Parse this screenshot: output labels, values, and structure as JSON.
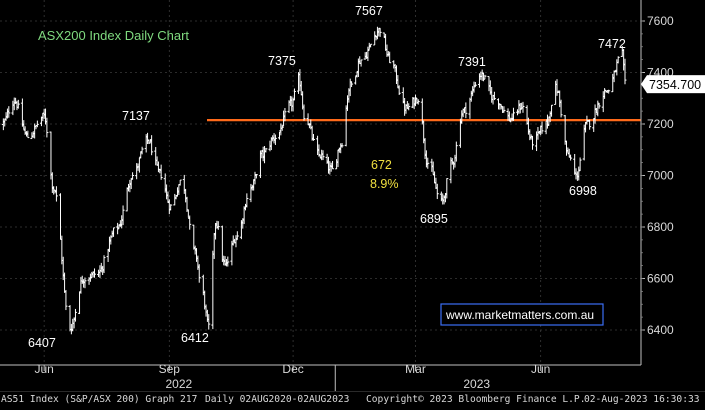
{
  "chart_data": {
    "type": "ohlc",
    "title": "ASX200 Index Daily Chart",
    "watermark": "www.marketmatters.com.au",
    "y_axis": {
      "ticks": [
        6400,
        6600,
        6800,
        7000,
        7200,
        7400,
        7600
      ],
      "ylim": [
        6340,
        7660
      ],
      "side": "right"
    },
    "x_axis": {
      "months": [
        "Jun",
        "Sep",
        "Dec",
        "Mar",
        "Jun"
      ],
      "years": [
        "2022",
        "2023"
      ]
    },
    "last_price": {
      "value": 7354.7,
      "label": "7354.700"
    },
    "support_line": {
      "value": 7215,
      "color": "#ff6a1a"
    },
    "annotations": [
      {
        "label": "6407",
        "value": 6407
      },
      {
        "label": "7137",
        "value": 7137
      },
      {
        "label": "6412",
        "value": 6412
      },
      {
        "label": "7375",
        "value": 7375
      },
      {
        "label": "7567",
        "value": 7567
      },
      {
        "label": "6895",
        "value": 6895
      },
      {
        "label": "7391",
        "value": 7391
      },
      {
        "label": "6998",
        "value": 6998
      },
      {
        "label": "7472",
        "value": 7472
      }
    ],
    "move_label": {
      "points": "672",
      "percent": "8.9%"
    },
    "anchors": [
      [
        "2022-05-01",
        7200
      ],
      [
        "2022-05-10",
        7290
      ],
      [
        "2022-05-20",
        7150
      ],
      [
        "2022-06-01",
        7230
      ],
      [
        "2022-06-08",
        6950
      ],
      [
        "2022-06-20",
        6407
      ],
      [
        "2022-06-30",
        6600
      ],
      [
        "2022-07-10",
        6620
      ],
      [
        "2022-07-25",
        6800
      ],
      [
        "2022-08-05",
        7000
      ],
      [
        "2022-08-16",
        7137
      ],
      [
        "2022-08-25",
        7010
      ],
      [
        "2022-09-02",
        6880
      ],
      [
        "2022-09-10",
        6980
      ],
      [
        "2022-09-20",
        6700
      ],
      [
        "2022-09-25",
        6550
      ],
      [
        "2022-09-30",
        6412
      ],
      [
        "2022-10-05",
        6820
      ],
      [
        "2022-10-12",
        6650
      ],
      [
        "2022-10-20",
        6760
      ],
      [
        "2022-10-31",
        6950
      ],
      [
        "2022-11-08",
        7080
      ],
      [
        "2022-11-18",
        7150
      ],
      [
        "2022-11-30",
        7280
      ],
      [
        "2022-12-05",
        7375
      ],
      [
        "2022-12-10",
        7220
      ],
      [
        "2022-12-20",
        7080
      ],
      [
        "2022-12-30",
        7020
      ],
      [
        "2023-01-05",
        7120
      ],
      [
        "2023-01-12",
        7350
      ],
      [
        "2023-01-20",
        7450
      ],
      [
        "2023-02-03",
        7567
      ],
      [
        "2023-02-10",
        7450
      ],
      [
        "2023-02-22",
        7260
      ],
      [
        "2023-03-03",
        7300
      ],
      [
        "2023-03-10",
        7050
      ],
      [
        "2023-03-20",
        6895
      ],
      [
        "2023-03-28",
        7050
      ],
      [
        "2023-04-05",
        7250
      ],
      [
        "2023-04-18",
        7391
      ],
      [
        "2023-04-28",
        7300
      ],
      [
        "2023-05-10",
        7220
      ],
      [
        "2023-05-18",
        7270
      ],
      [
        "2023-05-26",
        7130
      ],
      [
        "2023-06-05",
        7200
      ],
      [
        "2023-06-12",
        7340
      ],
      [
        "2023-06-22",
        7070
      ],
      [
        "2023-06-27",
        6998
      ],
      [
        "2023-07-05",
        7200
      ],
      [
        "2023-07-20",
        7330
      ],
      [
        "2023-07-31",
        7472
      ],
      [
        "2023-08-02",
        7354.7
      ]
    ]
  },
  "footer": {
    "security": "AS51 Index (S&P/ASX 200) Graph 217",
    "period": "Daily 02AUG2020-02AUG2023",
    "copyright": "Copyright© 2023 Bloomberg Finance L.P.",
    "timestamp": "02-Aug-2023 16:30:33"
  },
  "colors": {
    "background": "#000000",
    "bars": "#ffffff",
    "title": "#7fd97f",
    "move_label": "#f0e040",
    "support_line": "#ff6a1a",
    "watermark_border": "#3b6ff5",
    "axis": "#bfbfbf"
  }
}
